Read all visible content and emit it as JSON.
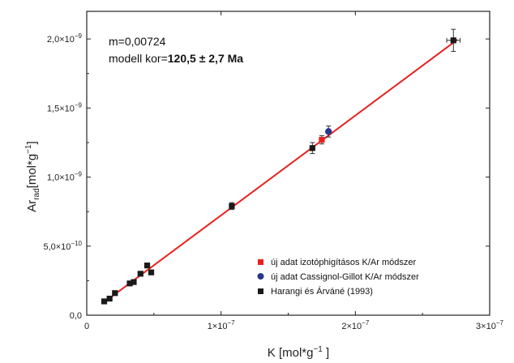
{
  "chart_data": {
    "type": "scatter",
    "xlabel": {
      "main": "K [mol*g",
      "sup": "−1",
      "tail": " ]"
    },
    "ylabel": {
      "main": "Ar",
      "sub": "rad",
      "tail": "[mol*g",
      "sup": "−1",
      "end": "]"
    },
    "xlim": [
      0,
      3e-07
    ],
    "ylim": [
      0,
      2.2e-09
    ],
    "x_ticks": [
      {
        "value": 0,
        "label": "0",
        "exp": ""
      },
      {
        "value": 1e-07,
        "label": "1×10",
        "exp": "−7"
      },
      {
        "value": 2e-07,
        "label": "2×10",
        "exp": "−7"
      },
      {
        "value": 3e-07,
        "label": "3×10",
        "exp": "−7"
      }
    ],
    "y_ticks": [
      {
        "value": 0,
        "label": "0,0",
        "exp": ""
      },
      {
        "value": 5e-10,
        "label": "5,0×10",
        "exp": "−10"
      },
      {
        "value": 1e-09,
        "label": "1,0×10",
        "exp": "−9"
      },
      {
        "value": 1.5e-09,
        "label": "1,5×10",
        "exp": "−9"
      },
      {
        "value": 2e-09,
        "label": "2,0×10",
        "exp": "−9"
      }
    ],
    "annotation": {
      "line1": "m=0,00724",
      "line2_prefix": "modell kor=",
      "line2_bold": "120,5 ± 2,7 Ma"
    },
    "fit_line": {
      "color": "#e8211d",
      "from": [
        1.2e-08,
        8.7e-11
      ],
      "to": [
        2.76e-07,
        1.995e-09
      ]
    },
    "series": [
      {
        "name": "új adat izotóphigításos K/Ar módszer",
        "color": "#e8211d",
        "marker": "square",
        "points": [
          {
            "x": 1.75e-07,
            "y": 1.27e-09,
            "yerr": 3e-11
          }
        ]
      },
      {
        "name": "új adat Cassignol-Gillot K/Ar módszer",
        "color": "#2a3590",
        "marker": "circle",
        "points": [
          {
            "x": 1.8e-07,
            "y": 1.33e-09,
            "yerr": 4e-11
          }
        ]
      },
      {
        "name": "Harangi és Árváné (1993)",
        "color": "#1a1a1a",
        "marker": "square",
        "points": [
          {
            "x": 1.3e-08,
            "y": 1e-10
          },
          {
            "x": 1.7e-08,
            "y": 1.2e-10
          },
          {
            "x": 2.1e-08,
            "y": 1.6e-10
          },
          {
            "x": 3.2e-08,
            "y": 2.3e-10
          },
          {
            "x": 3.5e-08,
            "y": 2.4e-10
          },
          {
            "x": 4e-08,
            "y": 3e-10
          },
          {
            "x": 4.5e-08,
            "y": 3.6e-10
          },
          {
            "x": 4.8e-08,
            "y": 3.1e-10
          },
          {
            "x": 1.08e-07,
            "y": 7.9e-10,
            "yerr": 2.5e-11
          },
          {
            "x": 1.68e-07,
            "y": 1.21e-09,
            "yerr": 4e-11
          },
          {
            "x": 2.73e-07,
            "y": 1.99e-09,
            "yerr": 8e-11,
            "xerr": 5e-09
          }
        ]
      }
    ],
    "legend_position": "bottom-right"
  }
}
